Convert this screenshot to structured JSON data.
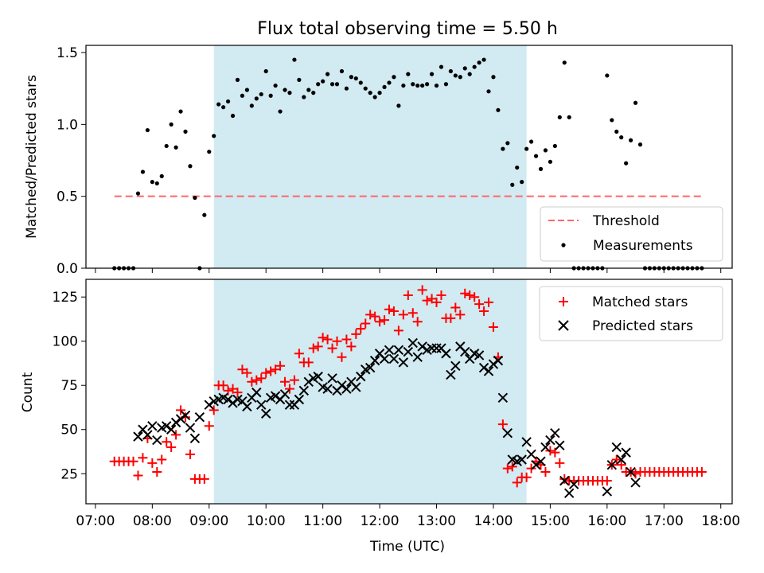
{
  "chart_data": [
    {
      "type": "scatter",
      "title": "Flux total observing time = 5.50 h",
      "xlabel": "",
      "ylabel": "Matched/Predicted stars",
      "xlim": [
        "07:00",
        "18:00"
      ],
      "ylim": [
        0,
        1.55
      ],
      "yticks": [
        "0.0",
        "0.5",
        "1.0",
        "1.5"
      ],
      "shaded_region": {
        "start": "09:05",
        "end": "14:35",
        "color": "#add8e6"
      },
      "legend": {
        "placement": "lower-right",
        "entries": [
          "Threshold",
          "Measurements"
        ]
      },
      "series": [
        {
          "name": "Threshold",
          "kind": "dashed-line",
          "color": "#ff6666",
          "x": [
            "07:20",
            "17:40"
          ],
          "y": [
            0.5,
            0.5
          ]
        },
        {
          "name": "Measurements",
          "kind": "points",
          "color": "#000000",
          "x": [
            "07:20",
            "07:25",
            "07:30",
            "07:35",
            "07:40",
            "07:45",
            "07:50",
            "07:55",
            "08:00",
            "08:05",
            "08:10",
            "08:15",
            "08:20",
            "08:25",
            "08:30",
            "08:35",
            "08:40",
            "08:45",
            "08:50",
            "08:55",
            "09:00",
            "09:05",
            "09:10",
            "09:15",
            "09:20",
            "09:25",
            "09:30",
            "09:35",
            "09:40",
            "09:45",
            "09:50",
            "09:55",
            "10:00",
            "10:05",
            "10:10",
            "10:15",
            "10:20",
            "10:25",
            "10:30",
            "10:35",
            "10:40",
            "10:45",
            "10:50",
            "10:55",
            "11:00",
            "11:05",
            "11:10",
            "11:15",
            "11:20",
            "11:25",
            "11:30",
            "11:35",
            "11:40",
            "11:45",
            "11:50",
            "11:55",
            "12:00",
            "12:05",
            "12:10",
            "12:15",
            "12:20",
            "12:25",
            "12:30",
            "12:35",
            "12:40",
            "12:45",
            "12:50",
            "12:55",
            "13:00",
            "13:05",
            "13:10",
            "13:15",
            "13:20",
            "13:25",
            "13:30",
            "13:35",
            "13:40",
            "13:45",
            "13:50",
            "13:55",
            "14:00",
            "14:05",
            "14:10",
            "14:15",
            "14:20",
            "14:25",
            "14:30",
            "14:35",
            "14:40",
            "14:45",
            "14:50",
            "14:55",
            "15:00",
            "15:05",
            "15:10",
            "15:15",
            "15:20",
            "15:25",
            "15:30",
            "15:35",
            "15:40",
            "15:45",
            "15:50",
            "15:55",
            "16:00",
            "16:05",
            "16:10",
            "16:15",
            "16:20",
            "16:25",
            "16:30",
            "16:35",
            "16:40",
            "16:45",
            "16:50",
            "16:55",
            "17:00",
            "17:05",
            "17:10",
            "17:15",
            "17:20",
            "17:25",
            "17:30",
            "17:35",
            "17:40"
          ],
          "y": [
            0,
            0,
            0,
            0,
            0,
            0.52,
            0.67,
            0.96,
            0.6,
            0.59,
            0.64,
            0.85,
            1.0,
            0.84,
            1.09,
            0.95,
            0.71,
            0.49,
            0,
            0.37,
            0.81,
            0.92,
            1.14,
            1.12,
            1.16,
            1.06,
            1.31,
            1.2,
            1.24,
            1.13,
            1.18,
            1.21,
            1.37,
            1.2,
            1.27,
            1.09,
            1.24,
            1.22,
            1.45,
            1.31,
            1.19,
            1.24,
            1.22,
            1.28,
            1.3,
            1.35,
            1.28,
            1.28,
            1.37,
            1.25,
            1.33,
            1.32,
            1.29,
            1.25,
            1.22,
            1.19,
            1.22,
            1.26,
            1.29,
            1.33,
            1.13,
            1.27,
            1.35,
            1.28,
            1.27,
            1.27,
            1.28,
            1.35,
            1.27,
            1.4,
            1.28,
            1.37,
            1.34,
            1.33,
            1.39,
            1.35,
            1.4,
            1.43,
            1.45,
            1.23,
            1.33,
            1.1,
            0.83,
            0.87,
            0.58,
            0.7,
            0.6,
            0.83,
            0.88,
            0.78,
            0.69,
            0.82,
            0.74,
            0.85,
            1.05,
            1.43,
            1.05,
            0,
            0,
            0,
            0,
            0,
            0,
            0,
            1.34,
            1.03,
            0.95,
            0.91,
            0.73,
            0.89,
            1.15,
            0.86,
            0,
            0,
            0,
            0,
            0,
            0,
            0,
            0,
            0,
            0,
            0,
            0,
            0
          ]
        }
      ]
    },
    {
      "type": "scatter",
      "title": "",
      "xlabel": "Time (UTC)",
      "ylabel": "Count",
      "xlim": [
        "07:00",
        "18:00"
      ],
      "ylim": [
        8,
        135
      ],
      "xticks": [
        "07:00",
        "08:00",
        "09:00",
        "10:00",
        "11:00",
        "12:00",
        "13:00",
        "14:00",
        "15:00",
        "16:00",
        "17:00",
        "18:00"
      ],
      "yticks": [
        "25",
        "50",
        "75",
        "100",
        "125"
      ],
      "shaded_region": {
        "start": "09:05",
        "end": "14:35",
        "color": "#add8e6"
      },
      "legend": {
        "placement": "upper-right",
        "entries": [
          "Matched stars",
          "Predicted stars"
        ]
      },
      "series": [
        {
          "name": "Matched stars",
          "marker": "+",
          "color": "#ff0000",
          "x": [
            "07:20",
            "07:25",
            "07:30",
            "07:35",
            "07:40",
            "07:45",
            "07:50",
            "07:55",
            "08:00",
            "08:05",
            "08:10",
            "08:15",
            "08:20",
            "08:25",
            "08:30",
            "08:35",
            "08:40",
            "08:45",
            "08:50",
            "08:55",
            "09:00",
            "09:05",
            "09:10",
            "09:15",
            "09:20",
            "09:25",
            "09:30",
            "09:35",
            "09:40",
            "09:45",
            "09:50",
            "09:55",
            "10:00",
            "10:05",
            "10:10",
            "10:15",
            "10:20",
            "10:25",
            "10:30",
            "10:35",
            "10:40",
            "10:45",
            "10:50",
            "10:55",
            "11:00",
            "11:05",
            "11:10",
            "11:15",
            "11:20",
            "11:25",
            "11:30",
            "11:35",
            "11:40",
            "11:45",
            "11:50",
            "11:55",
            "12:00",
            "12:05",
            "12:10",
            "12:15",
            "12:20",
            "12:25",
            "12:30",
            "12:35",
            "12:40",
            "12:45",
            "12:50",
            "12:55",
            "13:00",
            "13:05",
            "13:10",
            "13:15",
            "13:20",
            "13:25",
            "13:30",
            "13:35",
            "13:40",
            "13:45",
            "13:50",
            "13:55",
            "14:00",
            "14:05",
            "14:10",
            "14:15",
            "14:20",
            "14:25",
            "14:30",
            "14:35",
            "14:40",
            "14:45",
            "14:50",
            "14:55",
            "15:00",
            "15:05",
            "15:10",
            "15:15",
            "15:20",
            "15:25",
            "15:30",
            "15:35",
            "15:40",
            "15:45",
            "15:50",
            "15:55",
            "16:00",
            "16:05",
            "16:10",
            "16:15",
            "16:20",
            "16:25",
            "16:30",
            "16:35",
            "16:40",
            "16:45",
            "16:50",
            "16:55",
            "17:00",
            "17:05",
            "17:10",
            "17:15",
            "17:20",
            "17:25",
            "17:30",
            "17:35",
            "17:40"
          ],
          "y": [
            32,
            32,
            32,
            32,
            32,
            24,
            34,
            45,
            31,
            26,
            33,
            43,
            40,
            47,
            61,
            57,
            36,
            22,
            22,
            22,
            52,
            61,
            75,
            75,
            72,
            73,
            71,
            84,
            82,
            77,
            78,
            79,
            82,
            83,
            84,
            86,
            77,
            73,
            78,
            93,
            88,
            88,
            96,
            97,
            102,
            101,
            96,
            100,
            91,
            101,
            97,
            104,
            107,
            110,
            115,
            114,
            111,
            112,
            118,
            117,
            106,
            115,
            126,
            116,
            111,
            129,
            123,
            124,
            122,
            126,
            113,
            113,
            119,
            115,
            127,
            126,
            125,
            121,
            117,
            122,
            108,
            91,
            53,
            28,
            29,
            20,
            23,
            23,
            28,
            32,
            30,
            26,
            38,
            37,
            31,
            22,
            21,
            21,
            21,
            21,
            21,
            21,
            21,
            21,
            21,
            30,
            33,
            30,
            26,
            26,
            25,
            26,
            26,
            26,
            26,
            26,
            26,
            26,
            26,
            26,
            26,
            26,
            26,
            26,
            26
          ]
        },
        {
          "name": "Predicted stars",
          "marker": "x",
          "color": "#000000",
          "x": [
            "07:45",
            "07:50",
            "07:55",
            "08:00",
            "08:05",
            "08:10",
            "08:15",
            "08:20",
            "08:25",
            "08:30",
            "08:35",
            "08:40",
            "08:45",
            "08:50",
            "09:00",
            "09:05",
            "09:10",
            "09:15",
            "09:20",
            "09:25",
            "09:30",
            "09:35",
            "09:40",
            "09:45",
            "09:50",
            "09:55",
            "10:00",
            "10:05",
            "10:10",
            "10:15",
            "10:20",
            "10:25",
            "10:30",
            "10:35",
            "10:40",
            "10:45",
            "10:50",
            "10:55",
            "11:00",
            "11:05",
            "11:10",
            "11:15",
            "11:20",
            "11:25",
            "11:30",
            "11:35",
            "11:40",
            "11:45",
            "11:50",
            "11:55",
            "12:00",
            "12:05",
            "12:10",
            "12:15",
            "12:20",
            "12:25",
            "12:30",
            "12:35",
            "12:40",
            "12:45",
            "12:50",
            "12:55",
            "13:00",
            "13:05",
            "13:10",
            "13:15",
            "13:20",
            "13:25",
            "13:30",
            "13:35",
            "13:40",
            "13:45",
            "13:50",
            "13:55",
            "14:00",
            "14:05",
            "14:10",
            "14:15",
            "14:20",
            "14:25",
            "14:30",
            "14:35",
            "14:40",
            "14:45",
            "14:50",
            "14:55",
            "15:00",
            "15:05",
            "15:10",
            "15:15",
            "15:20",
            "15:25",
            "16:00",
            "16:05",
            "16:10",
            "16:15",
            "16:20",
            "16:25",
            "16:30"
          ],
          "y": [
            46,
            50,
            47,
            52,
            44,
            51,
            52,
            50,
            54,
            56,
            58,
            51,
            45,
            57,
            64,
            66,
            67,
            68,
            67,
            65,
            67,
            66,
            63,
            68,
            71,
            64,
            59,
            68,
            69,
            67,
            70,
            64,
            64,
            67,
            72,
            77,
            79,
            80,
            74,
            73,
            79,
            72,
            75,
            73,
            77,
            74,
            80,
            84,
            85,
            89,
            93,
            90,
            95,
            90,
            95,
            88,
            94,
            99,
            91,
            97,
            95,
            96,
            96,
            96,
            93,
            81,
            86,
            97,
            94,
            90,
            93,
            92,
            85,
            83,
            87,
            89,
            68,
            48,
            33,
            32,
            33,
            43,
            36,
            30,
            32,
            40,
            44,
            48,
            41,
            21,
            14,
            19,
            15,
            30,
            40,
            33,
            37,
            26,
            20
          ]
        }
      ]
    }
  ]
}
